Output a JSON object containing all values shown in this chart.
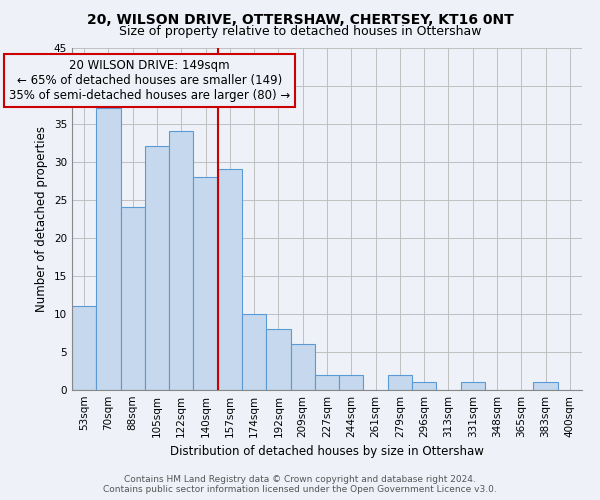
{
  "title": "20, WILSON DRIVE, OTTERSHAW, CHERTSEY, KT16 0NT",
  "subtitle": "Size of property relative to detached houses in Ottershaw",
  "bar_labels": [
    "53sqm",
    "70sqm",
    "88sqm",
    "105sqm",
    "122sqm",
    "140sqm",
    "157sqm",
    "174sqm",
    "192sqm",
    "209sqm",
    "227sqm",
    "244sqm",
    "261sqm",
    "279sqm",
    "296sqm",
    "313sqm",
    "331sqm",
    "348sqm",
    "365sqm",
    "383sqm",
    "400sqm"
  ],
  "bar_values": [
    11,
    37,
    24,
    32,
    34,
    28,
    29,
    10,
    8,
    6,
    2,
    2,
    0,
    2,
    1,
    0,
    1,
    0,
    0,
    1,
    0
  ],
  "bar_color": "#c5d8ed",
  "bar_edge_color": "#5b9bd5",
  "annotation_line1": "20 WILSON DRIVE: 149sqm",
  "annotation_line2": "← 65% of detached houses are smaller (149)",
  "annotation_line3": "35% of semi-detached houses are larger (80) →",
  "vline_x": 5.5,
  "vline_color": "#cc0000",
  "xlabel": "Distribution of detached houses by size in Ottershaw",
  "ylabel": "Number of detached properties",
  "ylim": [
    0,
    45
  ],
  "yticks": [
    0,
    5,
    10,
    15,
    20,
    25,
    30,
    35,
    40,
    45
  ],
  "grid_color": "#c0c0c0",
  "background_color": "#eef2f8",
  "footer_line1": "Contains HM Land Registry data © Crown copyright and database right 2024.",
  "footer_line2": "Contains public sector information licensed under the Open Government Licence v3.0.",
  "title_fontsize": 10,
  "subtitle_fontsize": 9,
  "annotation_fontsize": 8.5,
  "axis_label_fontsize": 8.5,
  "tick_fontsize": 7.5,
  "footer_fontsize": 6.5
}
